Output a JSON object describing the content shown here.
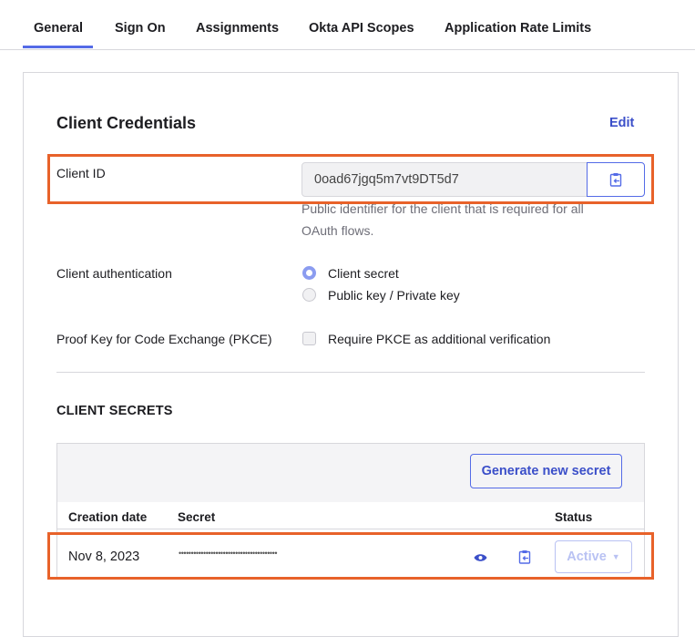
{
  "tabs": [
    {
      "label": "General"
    },
    {
      "label": "Sign On"
    },
    {
      "label": "Assignments"
    },
    {
      "label": "Okta API Scopes"
    },
    {
      "label": "Application Rate Limits"
    }
  ],
  "credentials": {
    "title": "Client Credentials",
    "edit_label": "Edit",
    "client_id_label": "Client ID",
    "client_id_value": "0oad67jgq5m7vt9DT5d7",
    "client_id_help": "Public identifier for the client that is required for all OAuth flows.",
    "auth_label": "Client authentication",
    "auth_options": [
      {
        "label": "Client secret",
        "selected": true
      },
      {
        "label": "Public key / Private key",
        "selected": false
      }
    ],
    "pkce_label": "Proof Key for Code Exchange (PKCE)",
    "pkce_option": "Require PKCE as additional verification",
    "pkce_checked": false
  },
  "secrets": {
    "title": "CLIENT SECRETS",
    "generate_label": "Generate new secret",
    "columns": [
      "Creation date",
      "Secret",
      "Status"
    ],
    "rows": [
      {
        "date": "Nov 8, 2023",
        "secret": "••••••••••••••••••••••••••••••••••••••••",
        "status": "Active"
      }
    ]
  },
  "colors": {
    "accent": "#546be7",
    "highlight": "#e8622a"
  }
}
